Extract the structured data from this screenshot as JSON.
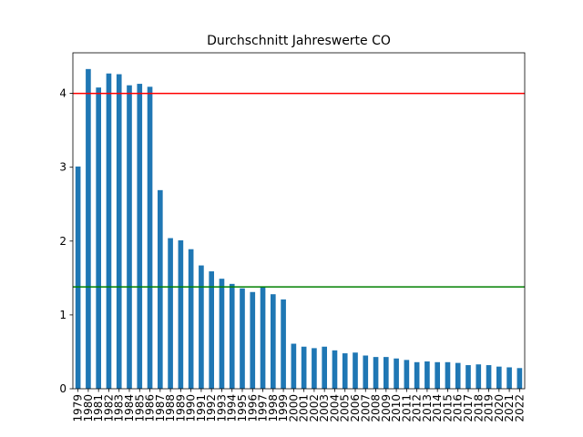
{
  "chart_data": {
    "type": "bar",
    "title": "Durchschnitt Jahreswerte CO",
    "xlabel": "",
    "ylabel": "",
    "categories": [
      "1979",
      "1980",
      "1981",
      "1982",
      "1983",
      "1984",
      "1985",
      "1986",
      "1987",
      "1988",
      "1989",
      "1990",
      "1991",
      "1992",
      "1993",
      "1994",
      "1995",
      "1996",
      "1997",
      "1998",
      "1999",
      "2000",
      "2001",
      "2002",
      "2003",
      "2004",
      "2005",
      "2006",
      "2007",
      "2008",
      "2009",
      "2010",
      "2011",
      "2012",
      "2013",
      "2014",
      "2015",
      "2016",
      "2017",
      "2018",
      "2019",
      "2020",
      "2021",
      "2022"
    ],
    "values": [
      3.01,
      4.33,
      4.08,
      4.27,
      4.26,
      4.11,
      4.13,
      4.09,
      2.69,
      2.04,
      2.01,
      1.89,
      1.67,
      1.59,
      1.49,
      1.42,
      1.36,
      1.31,
      1.38,
      1.28,
      1.21,
      0.61,
      0.57,
      0.55,
      0.57,
      0.52,
      0.48,
      0.49,
      0.45,
      0.43,
      0.43,
      0.41,
      0.39,
      0.36,
      0.37,
      0.36,
      0.36,
      0.35,
      0.32,
      0.33,
      0.32,
      0.3,
      0.29,
      0.28
    ],
    "yticks": [
      0,
      1,
      2,
      3,
      4
    ],
    "ylim": [
      0,
      4.55
    ],
    "bar_color": "#1f77b4",
    "reference_lines": [
      {
        "value": 4.0,
        "color": "#ff0000"
      },
      {
        "value": 1.38,
        "color": "#008000"
      }
    ],
    "grid": false,
    "legend": "none"
  }
}
